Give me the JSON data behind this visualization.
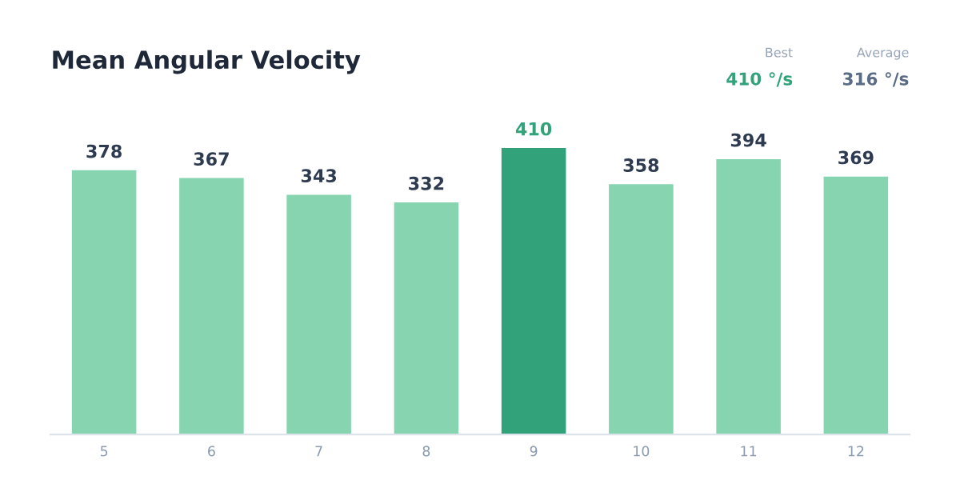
{
  "chart_data": {
    "type": "bar",
    "title": "Mean Angular Velocity",
    "categories": [
      "5",
      "6",
      "7",
      "8",
      "9",
      "10",
      "11",
      "12"
    ],
    "values": [
      378,
      367,
      343,
      332,
      410,
      358,
      394,
      369
    ],
    "colors": [
      "#86d5b0",
      "#86d5b0",
      "#86d5b0",
      "#86d5b0",
      "#31a27a",
      "#86d5b0",
      "#86d5b0",
      "#86d5b0"
    ],
    "data_labels": true,
    "grid": false,
    "annotations": [
      "Best",
      "410 °/s",
      "Average",
      "316 °/s"
    ]
  }
}
